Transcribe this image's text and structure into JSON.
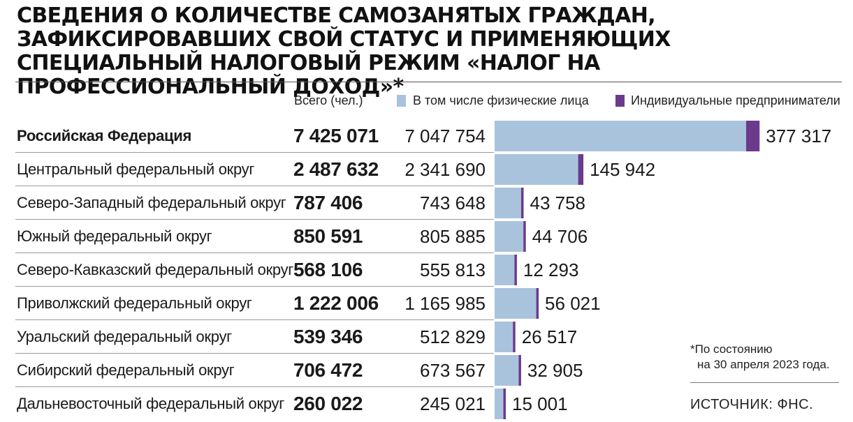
{
  "title": "СВЕДЕНИЯ О КОЛИЧЕСТВЕ САМОЗАНЯТЫХ ГРАЖДАН, ЗАФИКСИРОВАВШИХ СВОЙ СТАТУС И ПРИМЕНЯЮЩИХ СПЕЦИАЛЬНЫЙ НАЛОГОВЫЙ РЕЖИМ «НАЛОГ НА ПРОФЕССИОНАЛЬНЫЙ ДОХОД»*",
  "total_header": "Всего (чел.)",
  "legend": {
    "phys": "В том числе физические лица",
    "ip": "Индивидуальные предприниматели"
  },
  "colors": {
    "phys": "#a9c3dd",
    "ip": "#6b3a8c"
  },
  "note": "*По состоянию на 30 апреля 2023 года.",
  "source": "ИСТОЧНИК: ФНС.",
  "chart_data": {
    "type": "bar",
    "orientation": "horizontal",
    "stacked": true,
    "categories": [
      "Российская Федерация",
      "Центральный федеральный округ",
      "Северо-Западный федеральный округ",
      "Южный федеральный округ",
      "Северо-Кавказский федеральный округ",
      "Приволжский федеральный округ",
      "Уральский федеральный округ",
      "Сибирский федеральный округ",
      "Дальневосточный федеральный округ"
    ],
    "totals": [
      7425071,
      2487632,
      787406,
      850591,
      568106,
      1222006,
      539346,
      706472,
      260022
    ],
    "totals_text": [
      "7 425 071",
      "2 487 632",
      "787 406",
      "850 591",
      "568 106",
      "1 222 006",
      "539 346",
      "706 472",
      "260 022"
    ],
    "series": [
      {
        "name": "В том числе физические лица",
        "values": [
          7047754,
          2341690,
          743648,
          805885,
          555813,
          1165985,
          512829,
          673567,
          245021
        ],
        "labels": [
          "7 047 754",
          "2 341 690",
          "743 648",
          "805 885",
          "555 813",
          "1 165 985",
          "512 829",
          "673 567",
          "245 021"
        ]
      },
      {
        "name": "Индивидуальные предприниматели",
        "values": [
          377317,
          145942,
          43758,
          44706,
          12293,
          56021,
          26517,
          32905,
          15001
        ],
        "labels": [
          "377 317",
          "145 942",
          "43 758",
          "44 706",
          "12 293",
          "56 021",
          "26 517",
          "32 905",
          "15 001"
        ]
      }
    ]
  }
}
